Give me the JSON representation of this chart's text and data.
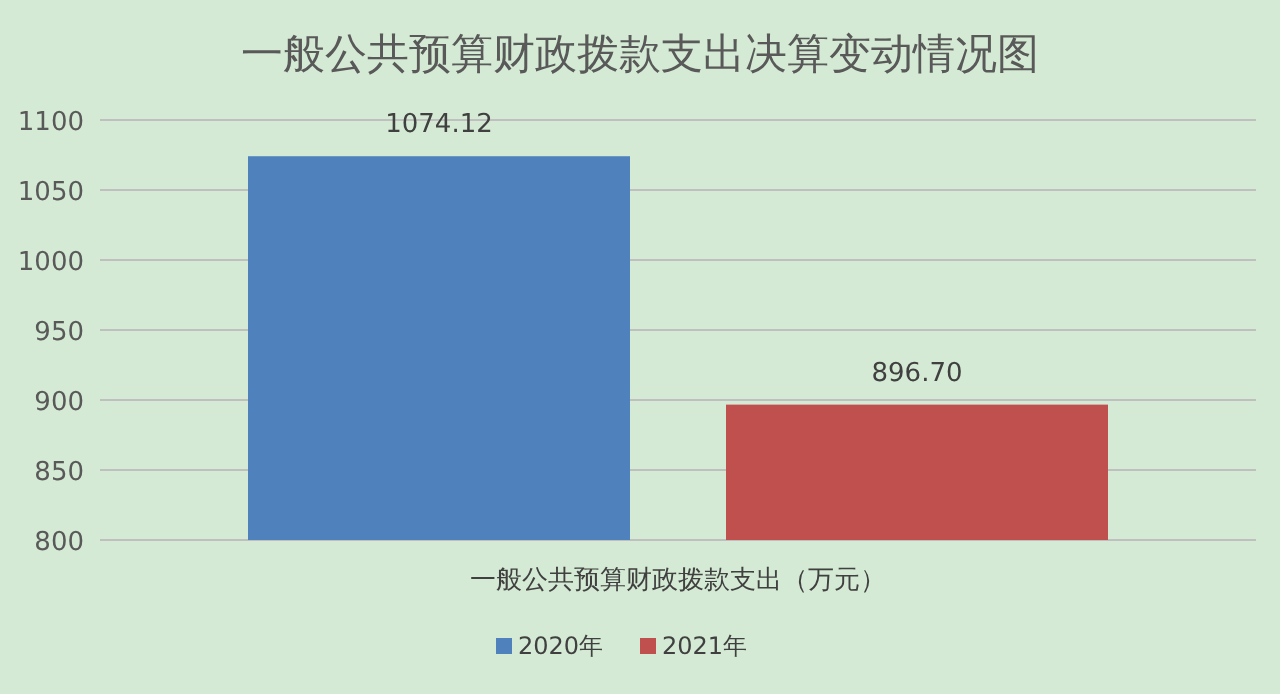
{
  "chart_data": {
    "type": "bar",
    "title": "一般公共预算财政拨款支出决算变动情况图",
    "categories": [
      "一般公共预算财政拨款支出（万元）"
    ],
    "series": [
      {
        "name": "2020年",
        "color": "#4f81bd",
        "values": [
          1074.12
        ],
        "value_labels": [
          "1074.12"
        ]
      },
      {
        "name": "2021年",
        "color": "#c0504d",
        "values": [
          896.7
        ],
        "value_labels": [
          "896.70"
        ]
      }
    ],
    "ylim": [
      800,
      1100
    ],
    "yticks": [
      800,
      850,
      900,
      950,
      1000,
      1050,
      1100
    ],
    "grid": "y",
    "legend": "bottom"
  }
}
